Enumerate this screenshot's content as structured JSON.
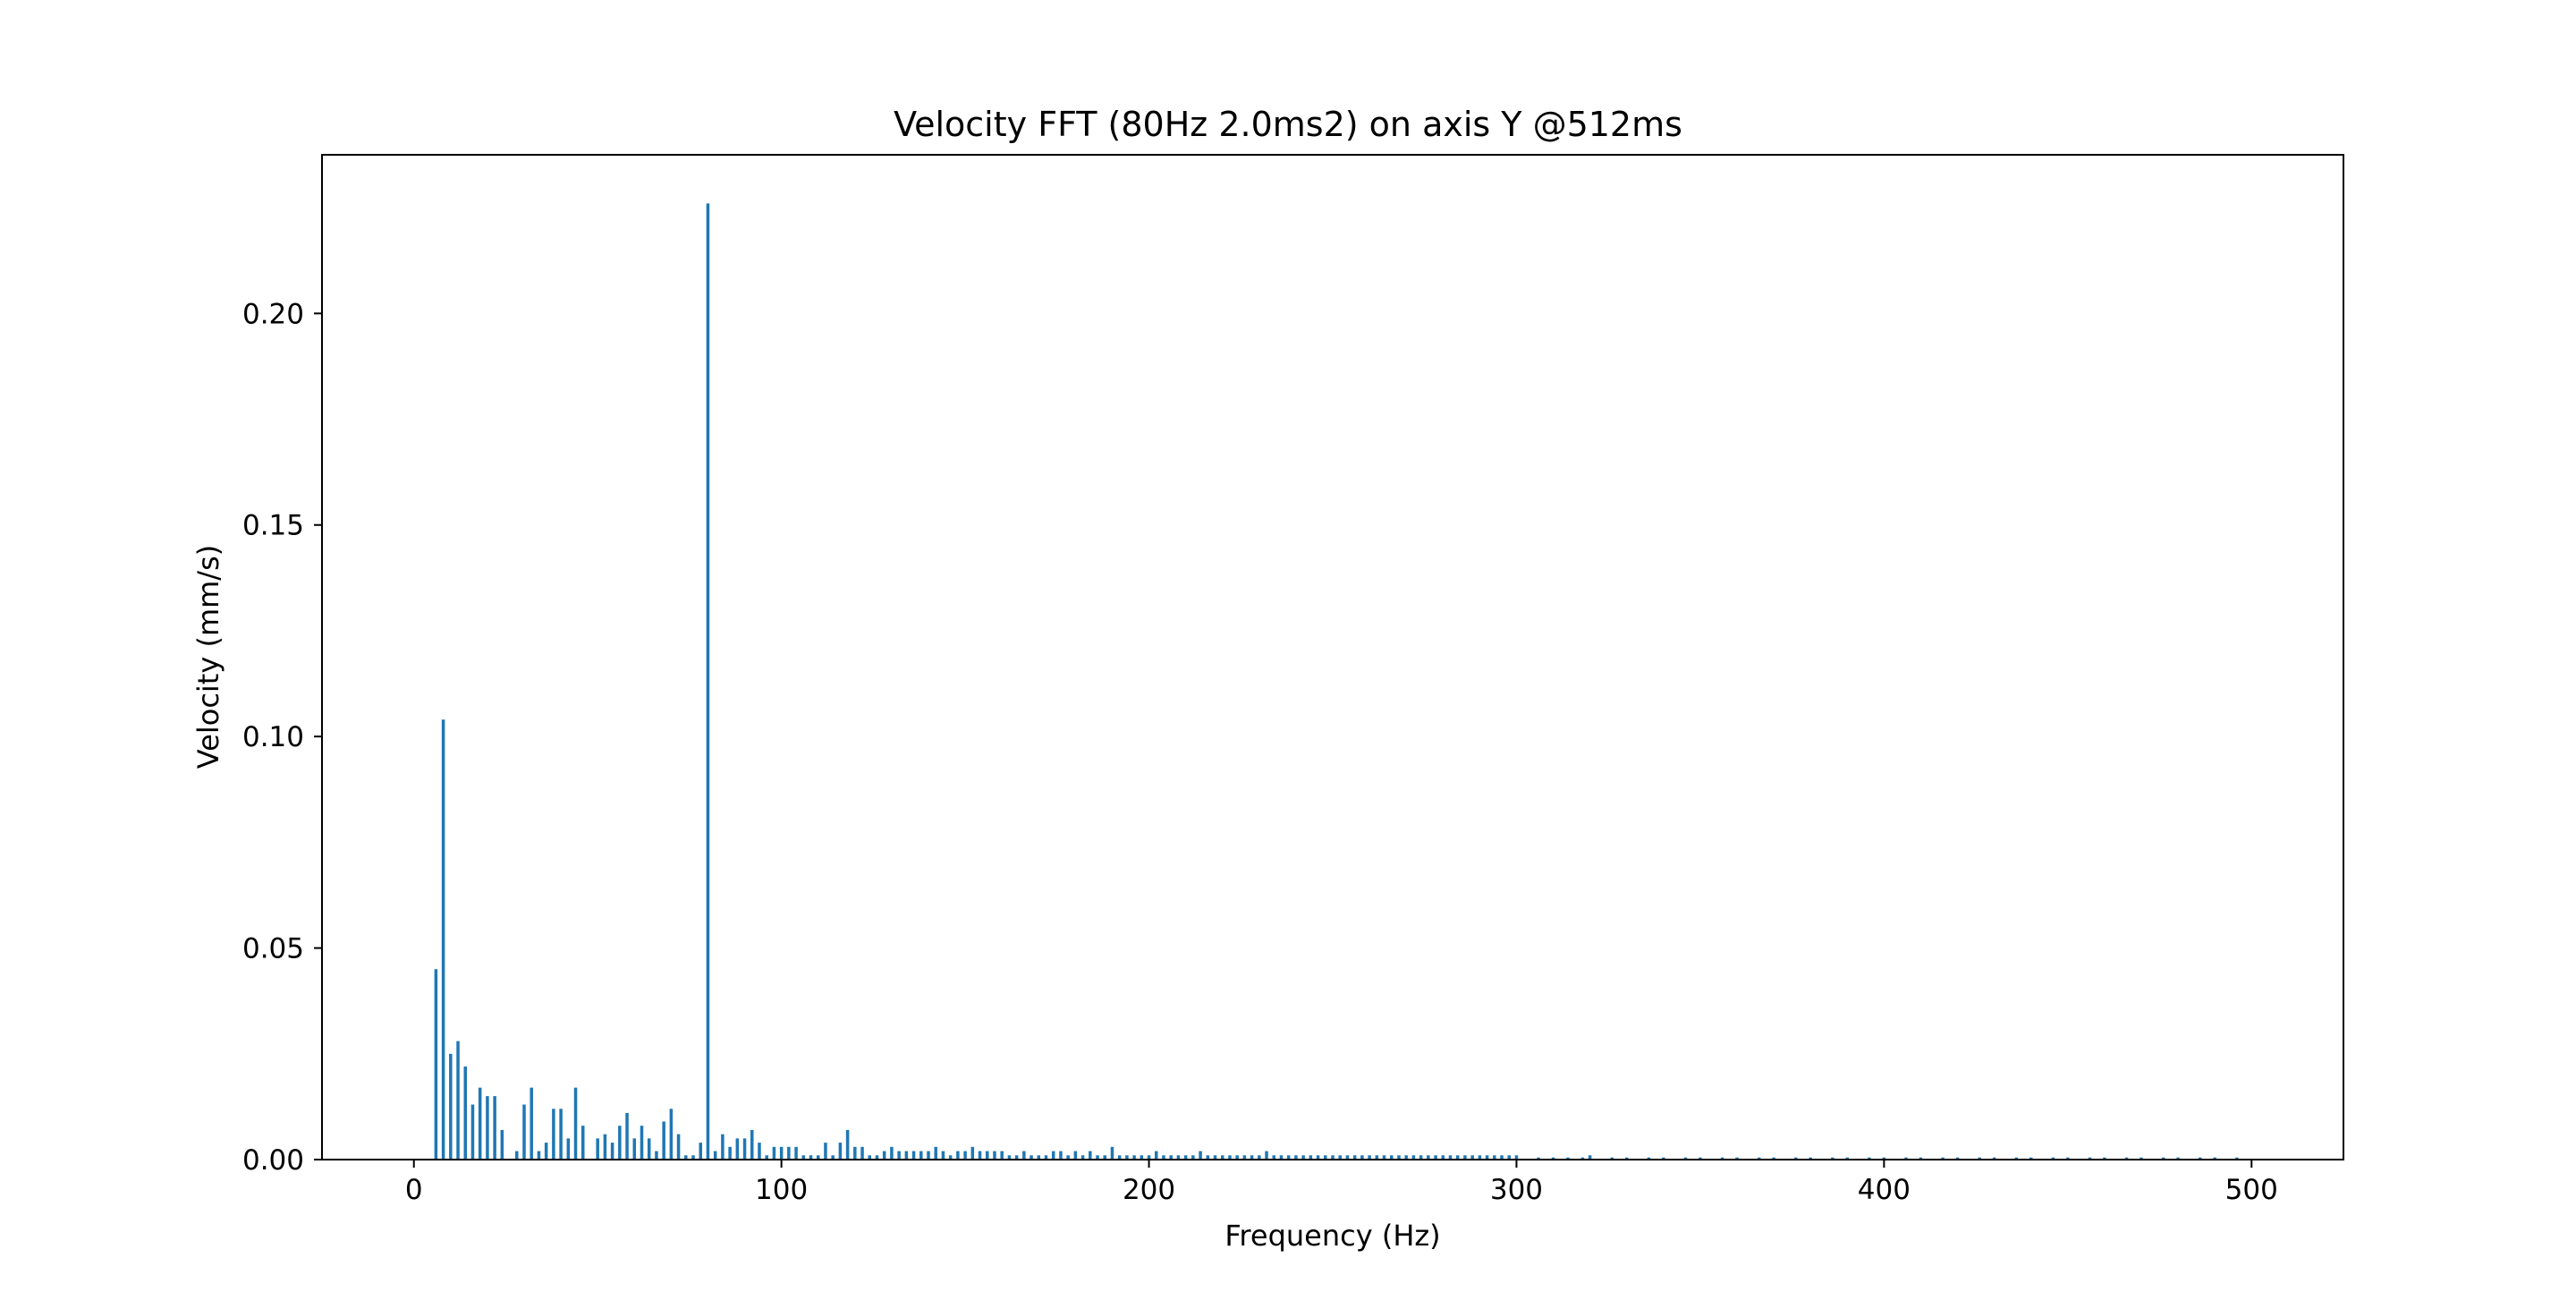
{
  "chart_data": {
    "type": "bar",
    "title": "Velocity FFT (80Hz 2.0ms2) on axis Y @512ms",
    "xlabel": "Frequency (Hz)",
    "ylabel": "Velocity (mm/s)",
    "xlim": [
      -25,
      525
    ],
    "ylim": [
      0,
      0.2375
    ],
    "xticks": [
      0,
      100,
      200,
      300,
      400,
      500
    ],
    "yticks": [
      0.0,
      0.05,
      0.1,
      0.15,
      0.2
    ],
    "xtick_labels": [
      "0",
      "100",
      "200",
      "300",
      "400",
      "500"
    ],
    "ytick_labels": [
      "0.00",
      "0.05",
      "0.10",
      "0.15",
      "0.20"
    ],
    "grid": false,
    "colors": {
      "bar": "#1f77b4",
      "axes": "#000000"
    },
    "series": [
      {
        "frequency_hz": [
          6,
          8,
          10,
          12,
          14,
          16,
          18,
          20,
          22,
          24,
          28,
          30,
          32,
          34,
          36,
          38,
          40,
          42,
          44,
          46,
          50,
          52,
          54,
          56,
          58,
          60,
          62,
          64,
          66,
          68,
          70,
          72,
          74,
          76,
          78,
          80,
          82,
          84,
          86,
          88,
          90,
          92,
          94,
          96,
          98,
          100,
          102,
          104,
          106,
          108,
          110,
          112,
          114,
          116,
          118,
          120,
          122,
          124,
          126,
          128,
          130,
          132,
          134,
          136,
          138,
          140,
          142,
          144,
          146,
          148,
          150,
          152,
          154,
          156,
          158,
          160,
          162,
          164,
          166,
          168,
          170,
          172,
          174,
          176,
          178,
          180,
          182,
          184,
          186,
          188,
          190,
          192,
          194,
          196,
          198,
          200,
          202,
          204,
          206,
          208,
          210,
          212,
          214,
          216,
          218,
          220,
          222,
          224,
          226,
          228,
          230,
          232,
          234,
          236,
          238,
          240,
          242,
          244,
          246,
          248,
          250,
          252,
          254,
          256,
          258,
          260,
          262,
          264,
          266,
          268,
          270,
          272,
          274,
          276,
          278,
          280,
          282,
          284,
          286,
          288,
          290,
          292,
          294,
          296,
          298,
          300,
          306,
          310,
          314,
          318,
          320,
          326,
          330,
          336,
          340,
          346,
          350,
          356,
          360,
          366,
          370,
          376,
          380,
          386,
          390,
          396,
          400,
          406,
          410,
          416,
          420,
          426,
          430,
          436,
          440,
          446,
          450,
          456,
          460,
          466,
          470,
          476,
          480,
          486,
          490,
          496
        ],
        "velocity_mm_s": [
          0.045,
          0.104,
          0.025,
          0.028,
          0.022,
          0.013,
          0.017,
          0.015,
          0.015,
          0.007,
          0.002,
          0.013,
          0.017,
          0.002,
          0.004,
          0.012,
          0.012,
          0.005,
          0.017,
          0.008,
          0.005,
          0.006,
          0.004,
          0.008,
          0.011,
          0.005,
          0.008,
          0.005,
          0.002,
          0.009,
          0.012,
          0.006,
          0.001,
          0.001,
          0.004,
          0.226,
          0.002,
          0.006,
          0.003,
          0.005,
          0.005,
          0.007,
          0.004,
          0.001,
          0.003,
          0.003,
          0.003,
          0.003,
          0.001,
          0.001,
          0.001,
          0.004,
          0.001,
          0.004,
          0.007,
          0.003,
          0.003,
          0.001,
          0.001,
          0.002,
          0.003,
          0.002,
          0.002,
          0.002,
          0.002,
          0.002,
          0.003,
          0.002,
          0.001,
          0.002,
          0.002,
          0.003,
          0.002,
          0.002,
          0.002,
          0.002,
          0.001,
          0.001,
          0.002,
          0.001,
          0.001,
          0.001,
          0.002,
          0.002,
          0.001,
          0.002,
          0.001,
          0.002,
          0.001,
          0.001,
          0.003,
          0.001,
          0.001,
          0.001,
          0.001,
          0.001,
          0.002,
          0.001,
          0.001,
          0.001,
          0.001,
          0.001,
          0.002,
          0.001,
          0.001,
          0.001,
          0.001,
          0.001,
          0.001,
          0.001,
          0.001,
          0.002,
          0.001,
          0.001,
          0.001,
          0.001,
          0.001,
          0.001,
          0.001,
          0.001,
          0.001,
          0.001,
          0.001,
          0.001,
          0.001,
          0.001,
          0.001,
          0.001,
          0.001,
          0.001,
          0.001,
          0.001,
          0.001,
          0.001,
          0.001,
          0.001,
          0.001,
          0.001,
          0.001,
          0.001,
          0.001,
          0.001,
          0.001,
          0.001,
          0.001,
          0.001,
          0.0005,
          0.0005,
          0.0005,
          0.0005,
          0.001,
          0.0005,
          0.0005,
          0.0005,
          0.0005,
          0.0005,
          0.0005,
          0.0005,
          0.0005,
          0.0005,
          0.0005,
          0.0005,
          0.0005,
          0.0005,
          0.0005,
          0.0005,
          0.0005,
          0.0005,
          0.0005,
          0.0005,
          0.0005,
          0.0005,
          0.0005,
          0.0005,
          0.0005,
          0.0005,
          0.0005,
          0.0005,
          0.0005,
          0.0005,
          0.0005,
          0.0005,
          0.0005,
          0.0005,
          0.0005,
          0.0005
        ]
      }
    ]
  }
}
